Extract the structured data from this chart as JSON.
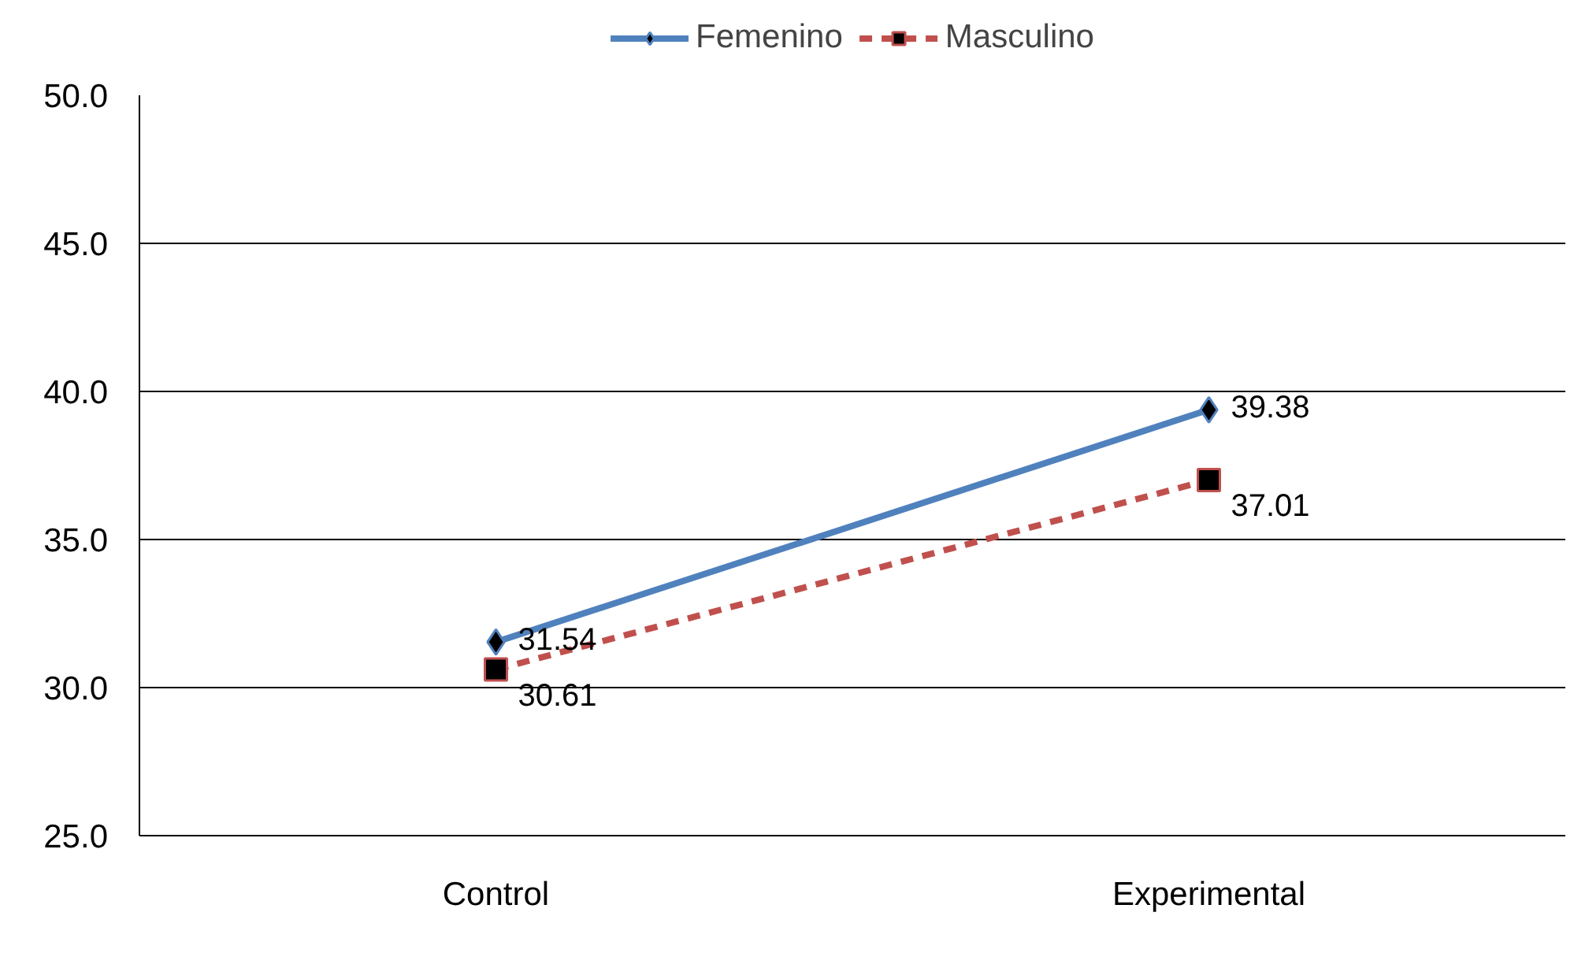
{
  "chart_data": {
    "type": "line",
    "categories": [
      "Control",
      "Experimental"
    ],
    "series": [
      {
        "name": "Femenino",
        "color": "#4f81bd",
        "values": [
          31.54,
          39.38
        ],
        "marker": "diamond",
        "line_style": "solid"
      },
      {
        "name": "Masculino",
        "color": "#c0504d",
        "values": [
          30.61,
          37.01
        ],
        "marker": "square",
        "line_style": "dashed"
      }
    ],
    "ylim": [
      25,
      50
    ],
    "yticks": [
      {
        "value": 25,
        "label": "25.0"
      },
      {
        "value": 30,
        "label": "30.0"
      },
      {
        "value": 35,
        "label": "35.0"
      },
      {
        "value": 40,
        "label": "40.0"
      },
      {
        "value": 45,
        "label": "45.0"
      },
      {
        "value": 50,
        "label": "50.0"
      }
    ],
    "grid": "y",
    "legend": "top",
    "data_labels": true
  }
}
